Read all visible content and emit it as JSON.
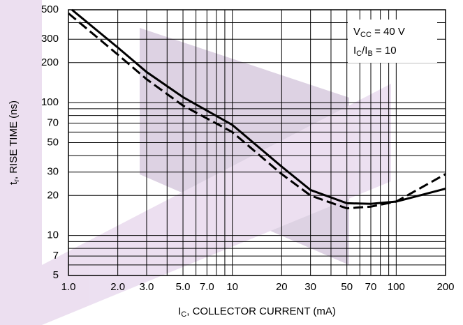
{
  "chart_data": {
    "type": "line",
    "title_parts": [],
    "x_label_parts": [
      "I",
      "C",
      ", COLLECTOR CURRENT (mA)"
    ],
    "y_label_parts": [
      "t",
      "r",
      ", RISE TIME (ns)"
    ],
    "annotations": [
      {
        "parts": [
          "V",
          "CC",
          " = 40 V"
        ]
      },
      {
        "parts": [
          "I",
          "C",
          "/I",
          "B",
          " = 10"
        ]
      }
    ],
    "log_x": true,
    "log_y": true,
    "grid": true,
    "xlim": [
      1,
      200
    ],
    "ylim": [
      5,
      500
    ],
    "xticks": [
      {
        "value": 1,
        "label": "1.0"
      },
      {
        "value": 2,
        "label": "2.0"
      },
      {
        "value": 3,
        "label": "3.0"
      },
      {
        "value": 5,
        "label": "5.0"
      },
      {
        "value": 7,
        "label": "7.0"
      },
      10,
      20,
      30,
      50,
      70,
      100,
      200
    ],
    "xminor": [
      4,
      6,
      8,
      9,
      40,
      60,
      80,
      90
    ],
    "yticks": [
      5,
      7,
      10,
      20,
      30,
      50,
      70,
      100,
      200,
      300,
      500
    ],
    "yminor": [
      6,
      8,
      9,
      40,
      60,
      80,
      90,
      400
    ],
    "series": [
      {
        "color": "#000000",
        "style": "solid",
        "x": [
          1.05,
          2,
          3,
          5,
          10,
          20,
          30,
          50,
          70,
          100,
          200
        ],
        "values": [
          500,
          260,
          170,
          110,
          68,
          33,
          22,
          17.5,
          17.3,
          18,
          22.5
        ]
      },
      {
        "color": "#000000",
        "style": "dashed",
        "x": [
          1,
          2,
          3,
          5,
          10,
          20,
          30,
          50,
          70,
          100,
          200
        ],
        "values": [
          470,
          230,
          150,
          95,
          60,
          29,
          20,
          16,
          16.5,
          18,
          29
        ]
      }
    ]
  }
}
